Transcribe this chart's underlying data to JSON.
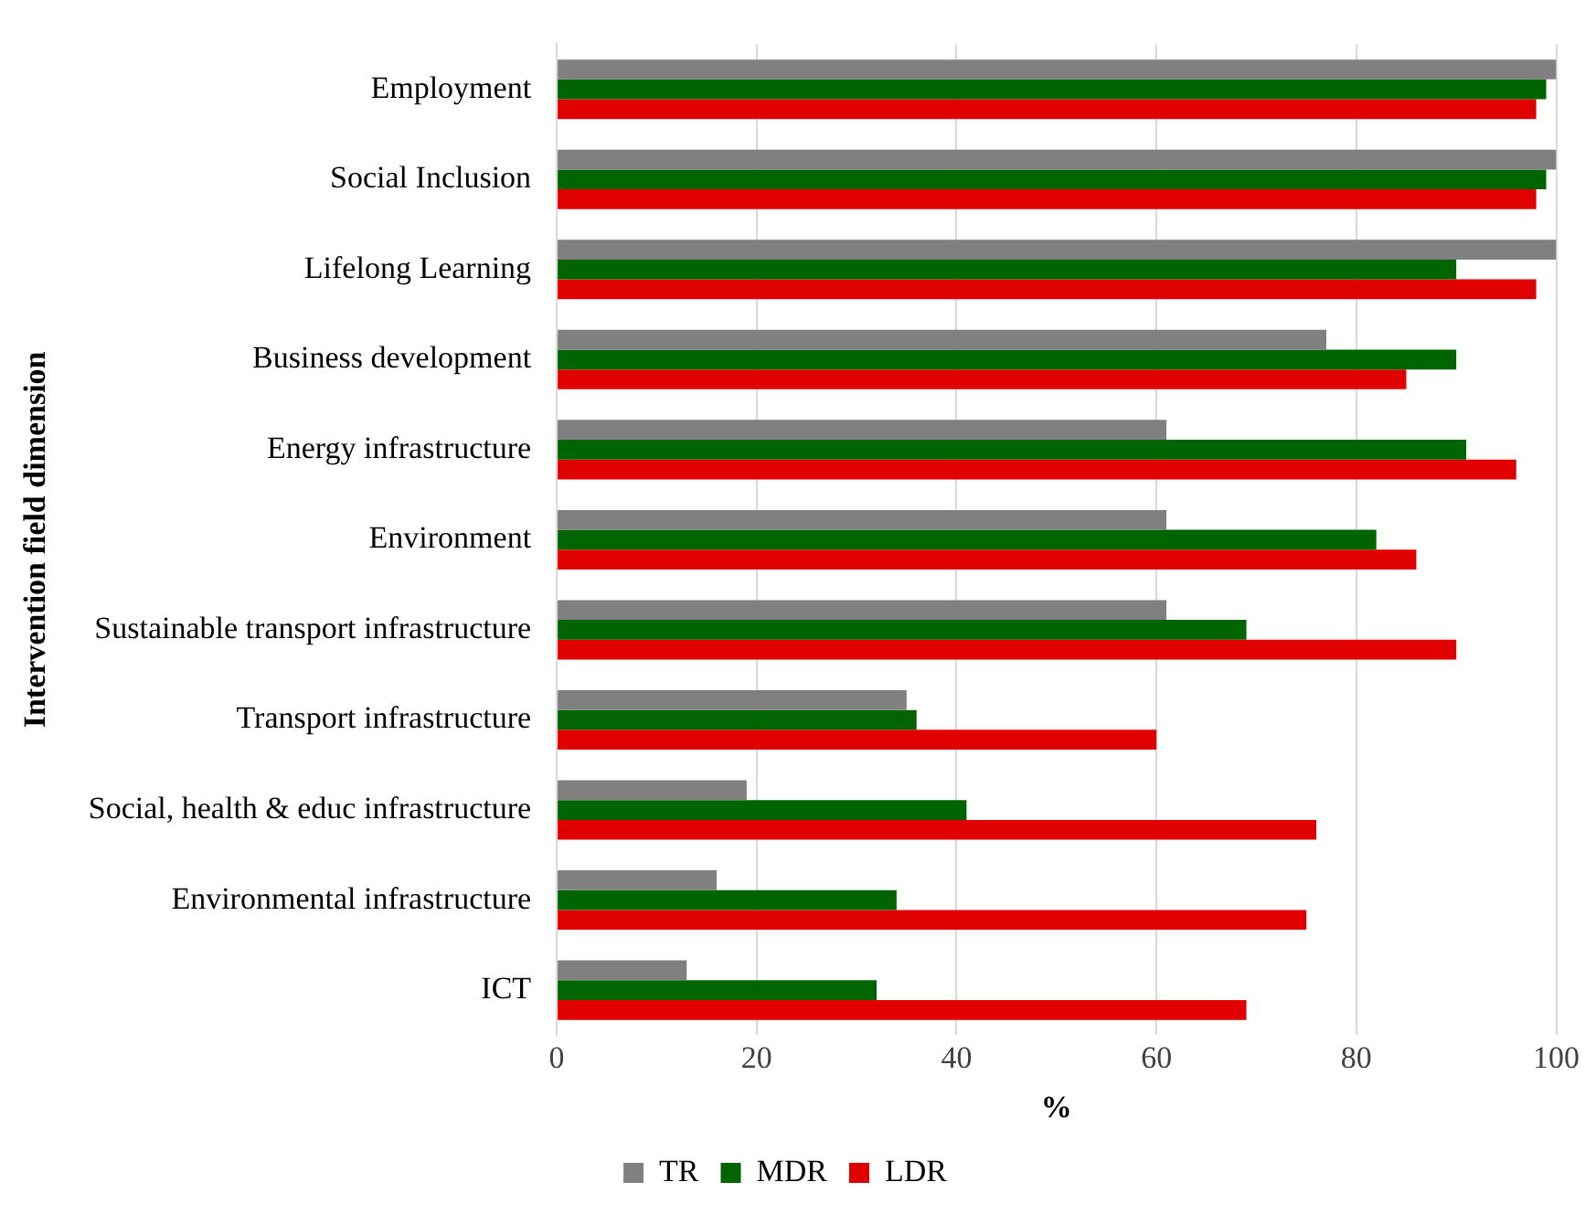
{
  "chart_data": {
    "type": "bar",
    "orientation": "horizontal",
    "xlabel": "%",
    "ylabel": "Intervention field dimension",
    "categories": [
      "Employment",
      "Social Inclusion",
      "Lifelong Learning",
      "Business development",
      "Energy infrastructure",
      "Environment",
      "Sustainable transport infrastructure",
      "Transport infrastructure",
      "Social, health & educ infrastructure",
      "Environmental infrastructure",
      "ICT"
    ],
    "series": [
      {
        "name": "TR",
        "color": "#808080",
        "values": [
          100,
          100,
          100,
          77,
          61,
          61,
          61,
          35,
          19,
          16,
          13
        ]
      },
      {
        "name": "MDR",
        "color": "#006400",
        "values": [
          99,
          99,
          90,
          90,
          91,
          82,
          69,
          36,
          41,
          34,
          32
        ]
      },
      {
        "name": "LDR",
        "color": "#e00000",
        "values": [
          98,
          98,
          98,
          85,
          96,
          86,
          90,
          60,
          76,
          75,
          69
        ]
      }
    ],
    "xlim": [
      0,
      100
    ],
    "xticks": [
      0,
      20,
      40,
      60,
      80,
      100
    ],
    "grid": "x",
    "legend": "bottom"
  }
}
